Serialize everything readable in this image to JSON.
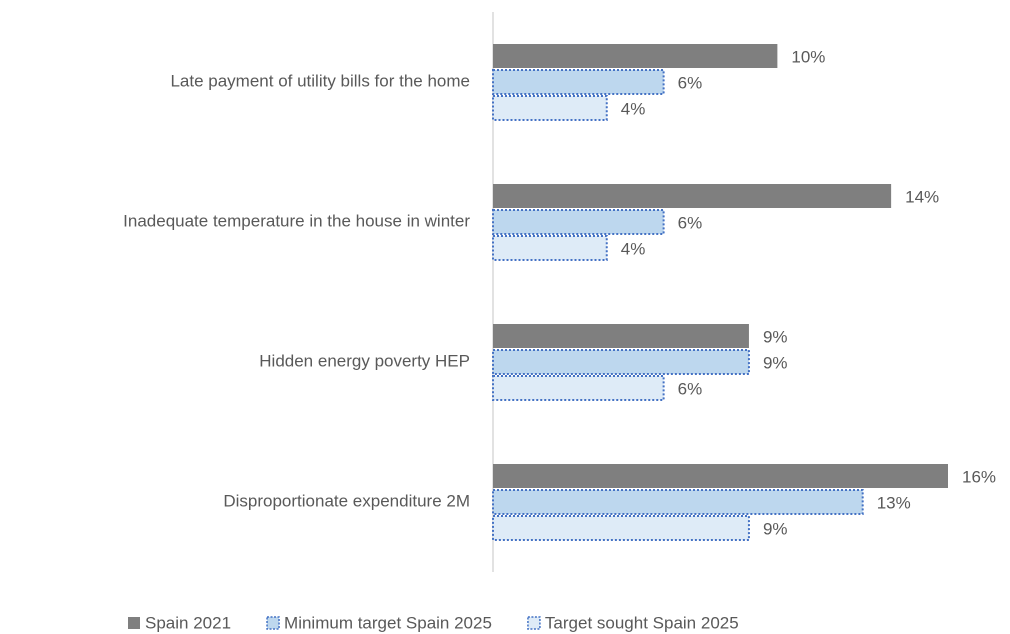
{
  "chart_data": {
    "type": "hbar",
    "categories": [
      "Late payment of utility bills for the home",
      "Inadequate temperature in the house in winter",
      "Hidden energy poverty HEP",
      "Disproportionate expenditure 2M"
    ],
    "series": [
      {
        "name": "Spain 2021",
        "color": "#7f7f7f",
        "values": [
          10,
          14,
          9,
          16
        ],
        "value_labels": [
          "10%",
          "14%",
          "9%",
          "16%"
        ]
      },
      {
        "name": "Minimum target Spain 2025",
        "color": "#bdd7ee",
        "border": "#4472c4",
        "values": [
          6,
          6,
          9,
          13
        ],
        "value_labels": [
          "6%",
          "6%",
          "9%",
          "13%"
        ]
      },
      {
        "name": "Target sought Spain 2025",
        "color": "#deebf7",
        "border": "#4472c4",
        "values": [
          4,
          4,
          6,
          9
        ],
        "value_labels": [
          "4%",
          "4%",
          "6%",
          "9%"
        ]
      }
    ],
    "legend": "bottom"
  }
}
